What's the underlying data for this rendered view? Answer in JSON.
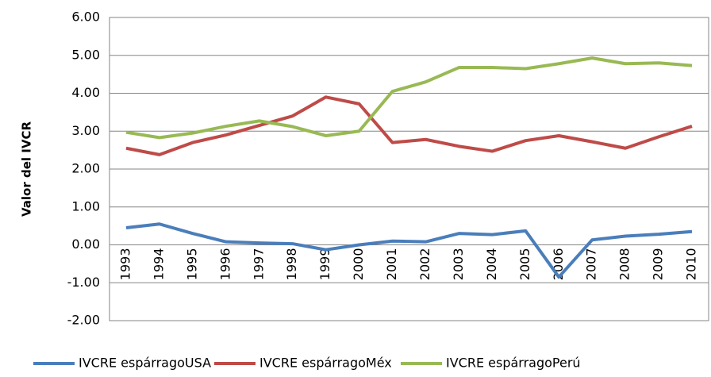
{
  "chart_data": {
    "type": "line",
    "y_label": "Valor del IVCR",
    "categories": [
      "1993",
      "1994",
      "1995",
      "1996",
      "1997",
      "1998",
      "1999",
      "2000",
      "2001",
      "2002",
      "2003",
      "2004",
      "2005",
      "2006",
      "2007",
      "2008",
      "2009",
      "2010"
    ],
    "series": [
      {
        "name": "IVCRE espárragoUSA",
        "color": "#4a7ebb",
        "values": [
          0.45,
          0.55,
          0.3,
          0.08,
          0.05,
          0.03,
          -0.13,
          0.0,
          0.1,
          0.08,
          0.3,
          0.27,
          0.37,
          -0.85,
          0.13,
          0.23,
          0.28,
          0.35
        ]
      },
      {
        "name": "IVCRE espárragoMéx",
        "color": "#be4b48",
        "values": [
          2.55,
          2.38,
          2.7,
          2.9,
          3.15,
          3.4,
          3.9,
          3.72,
          2.7,
          2.78,
          2.6,
          2.47,
          2.75,
          2.88,
          2.72,
          2.55,
          2.85,
          3.13
        ]
      },
      {
        "name": "IVCRE espárragoPerú",
        "color": "#98b954",
        "values": [
          2.97,
          2.83,
          2.95,
          3.13,
          3.27,
          3.12,
          2.88,
          3.0,
          4.05,
          4.3,
          4.68,
          4.68,
          4.65,
          4.78,
          4.93,
          4.78,
          4.8,
          4.73
        ]
      }
    ],
    "ylim": [
      -2,
      6
    ],
    "yticks": [
      {
        "value": -2,
        "label": "-2.00"
      },
      {
        "value": -1,
        "label": "-1.00"
      },
      {
        "value": 0,
        "label": "0.00"
      },
      {
        "value": 1,
        "label": "1.00"
      },
      {
        "value": 2,
        "label": "2.00"
      },
      {
        "value": 3,
        "label": "3.00"
      },
      {
        "value": 4,
        "label": "4.00"
      },
      {
        "value": 5,
        "label": "5.00"
      },
      {
        "value": 6,
        "label": "6.00"
      }
    ],
    "grid": true,
    "legend": "bottom"
  }
}
